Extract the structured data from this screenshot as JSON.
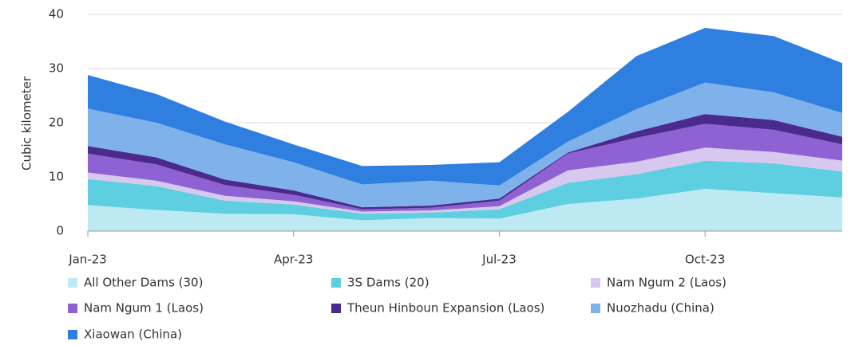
{
  "chart_data": {
    "type": "stacked_area",
    "y_label": "Cubic kilometer",
    "categories": [
      "Jan-23",
      null,
      null,
      "Apr-23",
      null,
      null,
      "Jul-23",
      null,
      null,
      "Oct-23",
      null,
      null
    ],
    "ylim": [
      0,
      40
    ],
    "yticks": [
      0,
      10,
      20,
      30,
      40
    ],
    "grid": true,
    "series": [
      {
        "name": "All Other Dams (30)",
        "color": "#bde9f2",
        "values": [
          4.8,
          3.9,
          3.2,
          3.1,
          2.0,
          2.4,
          2.3,
          5.0,
          6.0,
          7.8,
          7.0,
          6.2
        ]
      },
      {
        "name": "3S Dams (20)",
        "color": "#5dcfe0",
        "values": [
          4.8,
          4.4,
          2.4,
          1.8,
          1.2,
          1.0,
          1.7,
          3.9,
          4.5,
          5.2,
          5.5,
          4.8
        ]
      },
      {
        "name": "Nam Ngum 2 (Laos)",
        "color": "#d7c8ef",
        "values": [
          1.2,
          1.0,
          0.9,
          0.6,
          0.4,
          0.4,
          0.6,
          2.3,
          2.3,
          2.4,
          2.1,
          2.0
        ]
      },
      {
        "name": "Nam Ngum 1 (Laos)",
        "color": "#8e62d2",
        "values": [
          3.5,
          3.0,
          2.0,
          1.2,
          0.4,
          0.5,
          1.0,
          3.1,
          4.4,
          4.4,
          4.1,
          3.0
        ]
      },
      {
        "name": "Theun Hinboun Expansion (Laos)",
        "color": "#4b2a8e",
        "values": [
          1.4,
          1.3,
          1.0,
          0.8,
          0.4,
          0.4,
          0.4,
          0.2,
          1.2,
          1.8,
          1.8,
          1.4
        ]
      },
      {
        "name": "Nuozhadu (China)",
        "color": "#7fb2ea",
        "values": [
          6.9,
          6.4,
          6.5,
          5.2,
          4.2,
          4.6,
          2.4,
          2.0,
          4.1,
          5.8,
          5.1,
          4.4
        ]
      },
      {
        "name": "Xiaowan (China)",
        "color": "#2f7fe0",
        "values": [
          6.2,
          5.3,
          4.2,
          3.3,
          3.4,
          2.9,
          4.3,
          5.5,
          9.8,
          10.1,
          10.4,
          9.2
        ]
      }
    ]
  }
}
